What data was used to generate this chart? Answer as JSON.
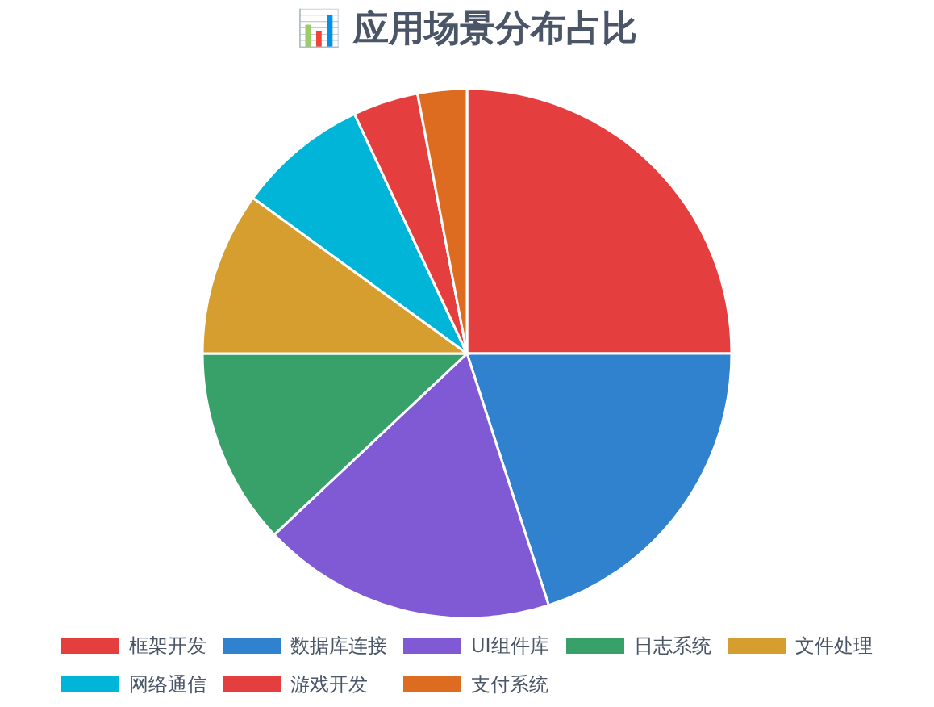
{
  "chart_data": {
    "type": "pie",
    "title": "📊 应用场景分布占比",
    "categories": [
      "框架开发",
      "数据库连接",
      "UI组件库",
      "日志系统",
      "文件处理",
      "网络通信",
      "游戏开发",
      "支付系统"
    ],
    "values": [
      25,
      20,
      18,
      12,
      10,
      8,
      4,
      3
    ],
    "colors": [
      "#e53e3e",
      "#3182ce",
      "#805ad5",
      "#38a169",
      "#d69e2e",
      "#00b5d8",
      "#e53e3e",
      "#dd6b20"
    ],
    "legend": "bottom"
  }
}
